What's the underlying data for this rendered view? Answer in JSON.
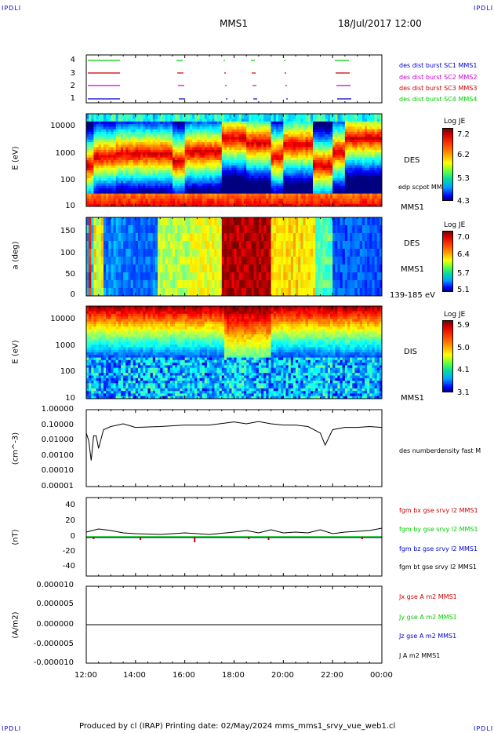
{
  "corners": {
    "tl": "IPDLI",
    "tr": "IPDLI",
    "bl": "IPDLI",
    "br": "IPDLI"
  },
  "header": {
    "mission": "MMS1",
    "datetime": "18/Jul/2017 12:00"
  },
  "footer": "Produced by cl (IRAP)   Printing date: 02/May/2024   mms_mms1_srvy_vue_web1.cl",
  "colors": {
    "green": "#00cc00",
    "red": "#cc0000",
    "magenta": "#cc00cc",
    "blue": "#0000cc",
    "black": "#000000"
  },
  "chart_data": [
    {
      "type": "line",
      "panel": "burst availability",
      "yticks": [
        "4",
        "3",
        "2",
        "1"
      ],
      "legend": [
        "des dist burst SC1 MMS1",
        "des dist burst SC2 MMS2",
        "des dist burst SC3 MMS3",
        "des dist burst SC4 MMS4"
      ]
    },
    {
      "type": "heatmap",
      "panel": "DES energy spectrogram",
      "ylabel": "E (eV)",
      "yscale": "log",
      "yticks": [
        "10000",
        "1000",
        "100",
        "10"
      ],
      "right_label": "DES",
      "overlay": "edp scpot MMS1",
      "footer_label": "MMS1",
      "colorbar": {
        "title": "Log JE",
        "ticks": [
          "7.2",
          "6.2",
          "5.3",
          "4.3"
        ]
      }
    },
    {
      "type": "heatmap",
      "panel": "DES pitch angle",
      "ylabel": "a (deg)",
      "yticks": [
        "150",
        "100",
        "50",
        "0"
      ],
      "right_label": "DES",
      "mid_label": "MMS1",
      "footer_label": "139-185 eV",
      "colorbar": {
        "title": "Log JE",
        "ticks": [
          "7.0",
          "6.4",
          "5.7",
          "5.1"
        ]
      }
    },
    {
      "type": "heatmap",
      "panel": "DIS energy spectrogram",
      "ylabel": "E (eV)",
      "yscale": "log",
      "yticks": [
        "10000",
        "1000",
        "100",
        "10"
      ],
      "right_label": "DIS",
      "footer_label": "MMS1",
      "colorbar": {
        "title": "Log JE",
        "ticks": [
          "5.9",
          "5.0",
          "4.1",
          "3.1"
        ]
      }
    },
    {
      "type": "line",
      "panel": "density",
      "ylabel": "(cm^-3)",
      "yscale": "log",
      "yticks": [
        "1.00000",
        "0.10000",
        "0.01000",
        "0.00100",
        "0.00010",
        "0.00001"
      ],
      "legend": [
        "des numberdensity fast M"
      ],
      "x": [
        12.0,
        12.1,
        12.2,
        12.3,
        12.4,
        12.5,
        12.7,
        13.0,
        13.5,
        14.0,
        15.0,
        16.0,
        17.0,
        18.0,
        18.5,
        19.0,
        19.5,
        20.0,
        20.5,
        21.0,
        21.5,
        21.7,
        22.0,
        22.5,
        23.0,
        23.5,
        24.0
      ],
      "y": [
        0.03,
        0.01,
        0.0005,
        0.02,
        0.02,
        0.003,
        0.05,
        0.08,
        0.12,
        0.07,
        0.08,
        0.1,
        0.1,
        0.16,
        0.12,
        0.17,
        0.12,
        0.1,
        0.1,
        0.08,
        0.03,
        0.005,
        0.05,
        0.07,
        0.07,
        0.08,
        0.07
      ]
    },
    {
      "type": "line",
      "panel": "magnetic field",
      "ylabel": "(nT)",
      "yticks": [
        "40",
        "20",
        "0",
        "-20",
        "-40"
      ],
      "ylim": [
        -50,
        50
      ],
      "legend": [
        "fgm bx gse srvy l2 MMS1",
        "fgm by gse srvy l2 MMS1",
        "fgm bz gse srvy l2 MMS1",
        "fgm bt gse srvy l2 MMS1"
      ],
      "x": [
        12.0,
        12.5,
        13.0,
        13.5,
        14.0,
        15.0,
        16.0,
        17.0,
        18.0,
        18.5,
        19.0,
        19.5,
        20.0,
        20.5,
        21.0,
        21.5,
        22.0,
        22.5,
        23.0,
        23.5,
        24.0
      ],
      "bt": [
        6,
        10,
        8,
        5,
        4,
        3,
        5,
        3,
        6,
        8,
        5,
        9,
        5,
        6,
        5,
        9,
        4,
        6,
        7,
        8,
        11
      ]
    },
    {
      "type": "line",
      "panel": "current density",
      "ylabel": "(A/m2)",
      "yticks": [
        "0.000010",
        "0.000005",
        "0.000000",
        "-0.000005",
        "-0.000010"
      ],
      "ylim": [
        -1e-05,
        1e-05
      ],
      "legend": [
        "Jx gse A m2 MMS1",
        "Jy gse A m2 MMS1",
        "Jz gse A m2 MMS1",
        "J A m2 MMS1"
      ]
    },
    {
      "type": "axis",
      "xticks": [
        "12:00",
        "14:00",
        "16:00",
        "18:00",
        "20:00",
        "22:00",
        "00:00"
      ]
    }
  ]
}
